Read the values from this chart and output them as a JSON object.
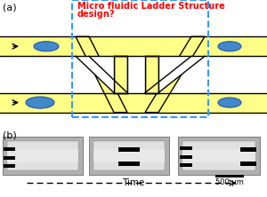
{
  "fig_width": 3.0,
  "fig_height": 2.22,
  "dpi": 100,
  "bg_color": "#ffffff",
  "yellow": "#FFFF88",
  "blue_ellipse": "#4488CC",
  "blue_ellipse_edge": "#2255AA",
  "black": "#000000",
  "red_text": "#FF0000",
  "blue_dashed": "#3399FF",
  "title_text1": "Micro fluidic Ladder Structure",
  "title_text2": "design?",
  "label_a": "(a)",
  "label_b": "(b)",
  "time_label": "Time",
  "scale_label": "500 μm",
  "panel_gray": "#B0B0B0",
  "panel_light": "#D0D0D0",
  "panel_lighter": "#E0E0E0"
}
